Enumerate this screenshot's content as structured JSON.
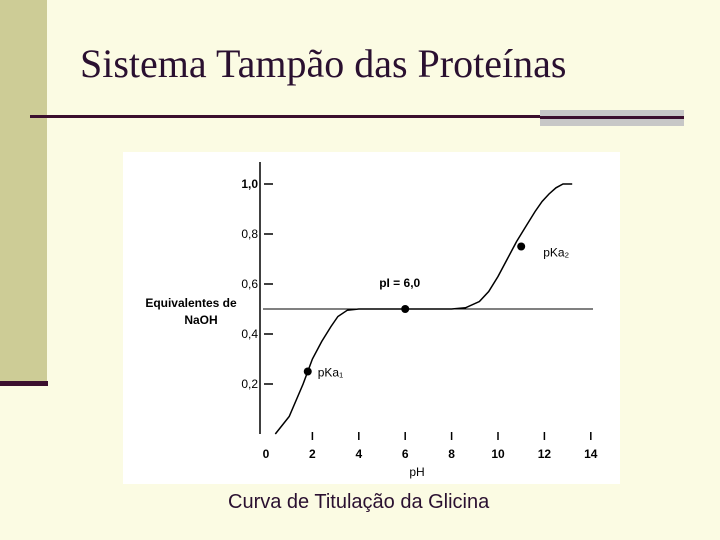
{
  "slide": {
    "title": "Sistema Tampão das Proteínas",
    "caption": "Curva de Titulação da Glicina"
  },
  "colors": {
    "background": "#fbfbe3",
    "sidebar": "#cdcc96",
    "accent_dark": "#3b0f2e",
    "accent_gray": "#c7c7c7",
    "curve": "#000000"
  },
  "chart_data": {
    "type": "line",
    "title": "",
    "xlabel": "pH",
    "ylabel": "Equivalentes de NaOH",
    "xlim": [
      0,
      14
    ],
    "ylim": [
      0,
      1.0
    ],
    "xticks": [
      0,
      2,
      4,
      6,
      8,
      10,
      12,
      14
    ],
    "xtick_labels": [
      "0",
      "2",
      "4",
      "6",
      "8",
      "10",
      "12",
      "14"
    ],
    "yticks": [
      0.2,
      0.4,
      0.6,
      0.8,
      1.0
    ],
    "ytick_labels": [
      "0,2",
      "0,4",
      "0,6",
      "0,8",
      "1,0"
    ],
    "grid": false,
    "reference_line_y": 0.5,
    "series": [
      {
        "x": [
          0.4,
          1.0,
          1.6,
          2.0,
          2.4,
          2.8,
          3.1,
          3.5,
          4.0,
          5.0,
          6.0,
          7.0,
          8.0,
          8.6,
          9.2,
          9.6,
          10.0,
          10.4,
          10.8,
          11.2,
          11.6,
          11.9,
          12.2,
          12.5,
          12.8,
          13.2
        ],
        "y": [
          0.0,
          0.07,
          0.2,
          0.3,
          0.37,
          0.43,
          0.47,
          0.495,
          0.5,
          0.5,
          0.5,
          0.5,
          0.5,
          0.505,
          0.53,
          0.57,
          0.63,
          0.7,
          0.77,
          0.83,
          0.89,
          0.93,
          0.96,
          0.985,
          1.0,
          1.0
        ]
      }
    ],
    "points": [
      {
        "x": 1.8,
        "y": 0.25,
        "label": "pKa₁"
      },
      {
        "x": 6.0,
        "y": 0.5,
        "label": "pI = 6,0"
      },
      {
        "x": 11.0,
        "y": 0.75,
        "label": "pKa₂"
      }
    ]
  }
}
